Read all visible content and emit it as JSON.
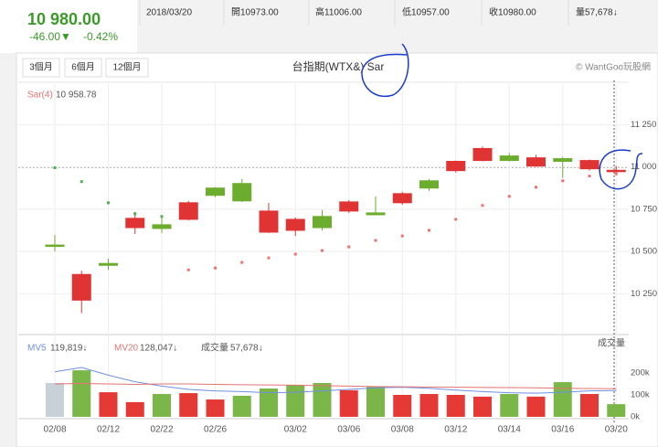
{
  "header": {
    "price": "10 980.00",
    "change": "-46.00▼",
    "change_pct": "-0.42%",
    "date": "2018/03/20",
    "open": "開10973.00",
    "high": "高11006.00",
    "low": "低10957.00",
    "close": "收10980.00",
    "volume": "量57,678↓"
  },
  "toolbar": {
    "buttons": [
      "3個月",
      "6個月",
      "12個月"
    ],
    "copyright": "© WantGoo玩股網"
  },
  "chart_data": [
    {
      "type": "candlestick",
      "title": "台指期(WTX&) Sar",
      "categories": [
        "02/08",
        null,
        "02/12",
        null,
        "02/22",
        null,
        "02/26",
        null,
        null,
        "03/02",
        null,
        "03/06",
        null,
        "03/08",
        null,
        "03/12",
        null,
        "03/14",
        null,
        "03/16",
        null,
        "03/20"
      ],
      "open": [
        10538,
        10212,
        10429,
        10641,
        10658,
        10690,
        10875,
        10902,
        10614,
        10625,
        10707,
        10739,
        10728,
        10788,
        10918,
        10978,
        11038,
        11065,
        11005,
        11049,
        10989,
        10973
      ],
      "high": [
        10598,
        10386,
        10457,
        10734,
        10707,
        10799,
        10880,
        10929,
        10788,
        10701,
        10745,
        10804,
        10826,
        10853,
        10929,
        11038,
        11120,
        11082,
        11071,
        11060,
        11043,
        11006
      ],
      "low": [
        10500,
        10136,
        10391,
        10603,
        10609,
        10685,
        10821,
        10793,
        10609,
        10592,
        10625,
        10728,
        10717,
        10777,
        10859,
        10967,
        11033,
        11033,
        11000,
        10935,
        10978,
        10957
      ],
      "close": [
        10532,
        10364,
        10418,
        10696,
        10636,
        10788,
        10832,
        10799,
        10739,
        10690,
        10641,
        10793,
        10717,
        10842,
        10875,
        11033,
        11109,
        11038,
        11054,
        11033,
        11038,
        10980
      ],
      "up_color": "#e03434",
      "down_color": "#6cad2e",
      "sar": {
        "name": "Sar(4)",
        "value_label": "10 958.78",
        "values": [
          10995,
          10913,
          10788,
          10723,
          10707,
          10391,
          10402,
          10435,
          10462,
          10484,
          10505,
          10527,
          10565,
          10592,
          10625,
          10690,
          10772,
          10826,
          10880,
          10918,
          10946,
          10958.78
        ],
        "colors": [
          "#4caf50",
          "#4caf50",
          "#4caf50",
          "#4caf50",
          "#4caf50",
          "#f07070",
          "#f07070",
          "#f07070",
          "#f07070",
          "#f07070",
          "#f07070",
          "#f07070",
          "#f07070",
          "#f07070",
          "#f07070",
          "#f07070",
          "#f07070",
          "#f07070",
          "#f07070",
          "#f07070",
          "#f07070",
          "#f07070"
        ]
      },
      "ylim": [
        10030,
        11490
      ],
      "yticks": [
        {
          "value": 10250,
          "label": "10 250"
        },
        {
          "value": 10500,
          "label": "10 500"
        },
        {
          "value": 10750,
          "label": "10 750"
        },
        {
          "value": 11000,
          "label": "11 000"
        },
        {
          "value": 11250,
          "label": "11 250"
        }
      ],
      "grid": true
    },
    {
      "type": "bar",
      "ylabel": "成交量",
      "values": [
        154000,
        212000,
        112000,
        67000,
        104000,
        108000,
        79000,
        96000,
        129000,
        146000,
        154000,
        121000,
        137000,
        100000,
        104000,
        100000,
        92000,
        104000,
        92000,
        158000,
        104000,
        57678
      ],
      "colors": [
        "#c8d0d8",
        "#7ab648",
        "#e53935",
        "#e53935",
        "#7ab648",
        "#e53935",
        "#e53935",
        "#7ab648",
        "#7ab648",
        "#7ab648",
        "#7ab648",
        "#e53935",
        "#7ab648",
        "#e53935",
        "#e53935",
        "#e53935",
        "#e53935",
        "#7ab648",
        "#e53935",
        "#7ab648",
        "#e53935",
        "#7ab648"
      ],
      "legend": {
        "name": "成交量",
        "value_label": "57,678↓"
      },
      "series": [
        {
          "name": "MV5",
          "color": "#6f8fe0",
          "value_label": "119,819↓",
          "values": [
            205000,
            225000,
            190000,
            160000,
            140000,
            125000,
            118000,
            115000,
            110000,
            112000,
            118000,
            125000,
            132000,
            135000,
            130000,
            122000,
            115000,
            110000,
            108000,
            112000,
            118000,
            119819
          ]
        },
        {
          "name": "MV20",
          "color": "#e57373",
          "value_label": "128,047↓",
          "values": [
            150000,
            152000,
            150000,
            148000,
            150000,
            150000,
            148000,
            146000,
            145000,
            144000,
            142000,
            140000,
            138000,
            137000,
            136000,
            135000,
            134000,
            133000,
            132000,
            130000,
            129000,
            128047
          ]
        }
      ],
      "ylim": [
        0,
        254000
      ],
      "yticks": [
        {
          "value": 0,
          "label": "0k"
        },
        {
          "value": 100000,
          "label": "100k"
        },
        {
          "value": 200000,
          "label": "200k"
        }
      ]
    }
  ]
}
